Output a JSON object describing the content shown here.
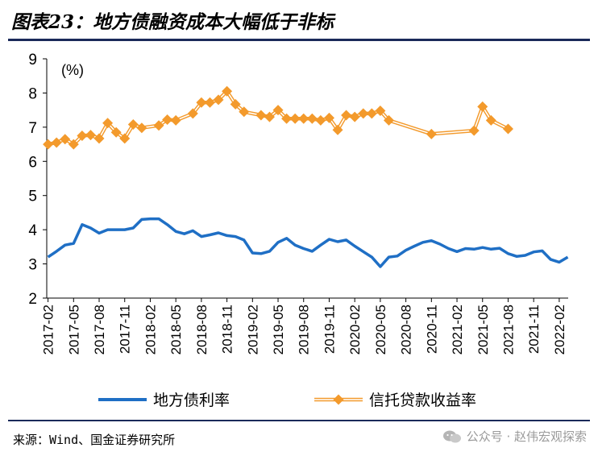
{
  "title": "图表23：地方债融资成本大幅低于非标",
  "source": "来源：Wind、国金证券研究所",
  "watermark": "公众号 · 赵伟宏观探索",
  "colors": {
    "blue": "#1f6fc5",
    "orange": "#f39a2c",
    "rule": "#1a2a5a"
  },
  "chart_data": {
    "type": "line",
    "unit_label": "(%)",
    "ylim": [
      2,
      9
    ],
    "yticks": [
      "2",
      "3",
      "4",
      "5",
      "6",
      "7",
      "8",
      "9"
    ],
    "x_start": "2017-02",
    "x_end": "2022-02",
    "xtick_labels": [
      "2017-02",
      "2017-05",
      "2017-08",
      "2017-11",
      "2018-02",
      "2018-05",
      "2018-08",
      "2018-11",
      "2019-02",
      "2019-05",
      "2019-08",
      "2019-11",
      "2020-02",
      "2020-05",
      "2020-08",
      "2020-11",
      "2021-02",
      "2021-05",
      "2021-08",
      "2021-11",
      "2022-02"
    ],
    "grid": false,
    "legend_position": "bottom",
    "series": [
      {
        "name": "地方债利率",
        "color": "#1f6fc5",
        "marker": "none",
        "points": [
          [
            "2017-02",
            3.2
          ],
          [
            "2017-03",
            3.37
          ],
          [
            "2017-04",
            3.55
          ],
          [
            "2017-05",
            3.6
          ],
          [
            "2017-06",
            4.15
          ],
          [
            "2017-07",
            4.05
          ],
          [
            "2017-08",
            3.9
          ],
          [
            "2017-09",
            4.0
          ],
          [
            "2017-10",
            4.0
          ],
          [
            "2017-11",
            4.0
          ],
          [
            "2017-12",
            4.05
          ],
          [
            "2018-01",
            4.3
          ],
          [
            "2018-02",
            4.32
          ],
          [
            "2018-03",
            4.32
          ],
          [
            "2018-04",
            4.15
          ],
          [
            "2018-05",
            3.95
          ],
          [
            "2018-06",
            3.88
          ],
          [
            "2018-07",
            3.97
          ],
          [
            "2018-08",
            3.8
          ],
          [
            "2018-09",
            3.85
          ],
          [
            "2018-10",
            3.91
          ],
          [
            "2018-11",
            3.83
          ],
          [
            "2018-12",
            3.8
          ],
          [
            "2019-01",
            3.7
          ],
          [
            "2019-02",
            3.32
          ],
          [
            "2019-03",
            3.3
          ],
          [
            "2019-04",
            3.37
          ],
          [
            "2019-05",
            3.63
          ],
          [
            "2019-06",
            3.75
          ],
          [
            "2019-07",
            3.55
          ],
          [
            "2019-08",
            3.45
          ],
          [
            "2019-09",
            3.37
          ],
          [
            "2019-10",
            3.55
          ],
          [
            "2019-11",
            3.72
          ],
          [
            "2019-12",
            3.65
          ],
          [
            "2020-01",
            3.7
          ],
          [
            "2020-02",
            3.52
          ],
          [
            "2020-03",
            3.36
          ],
          [
            "2020-04",
            3.2
          ],
          [
            "2020-05",
            2.92
          ],
          [
            "2020-06",
            3.2
          ],
          [
            "2020-07",
            3.23
          ],
          [
            "2020-08",
            3.4
          ],
          [
            "2020-09",
            3.52
          ],
          [
            "2020-10",
            3.63
          ],
          [
            "2020-11",
            3.68
          ],
          [
            "2020-12",
            3.58
          ],
          [
            "2021-01",
            3.45
          ],
          [
            "2021-02",
            3.36
          ],
          [
            "2021-03",
            3.45
          ],
          [
            "2021-04",
            3.43
          ],
          [
            "2021-05",
            3.48
          ],
          [
            "2021-06",
            3.43
          ],
          [
            "2021-07",
            3.46
          ],
          [
            "2021-08",
            3.3
          ],
          [
            "2021-09",
            3.22
          ],
          [
            "2021-10",
            3.25
          ],
          [
            "2021-11",
            3.35
          ],
          [
            "2021-12",
            3.38
          ],
          [
            "2022-01",
            3.13
          ],
          [
            "2022-02",
            3.05
          ],
          [
            "2022-03",
            3.2
          ]
        ]
      },
      {
        "name": "信托贷款收益率",
        "color": "#f39a2c",
        "marker": "diamond",
        "points": [
          [
            "2017-02",
            6.5
          ],
          [
            "2017-03",
            6.55
          ],
          [
            "2017-04",
            6.65
          ],
          [
            "2017-05",
            6.5
          ],
          [
            "2017-06",
            6.75
          ],
          [
            "2017-07",
            6.77
          ],
          [
            "2017-08",
            6.67
          ],
          [
            "2017-09",
            7.12
          ],
          [
            "2017-10",
            6.85
          ],
          [
            "2017-11",
            6.67
          ],
          [
            "2017-12",
            7.08
          ],
          [
            "2018-01",
            6.98
          ],
          [
            "2018-03",
            7.05
          ],
          [
            "2018-04",
            7.22
          ],
          [
            "2018-05",
            7.2
          ],
          [
            "2018-07",
            7.4
          ],
          [
            "2018-08",
            7.72
          ],
          [
            "2018-09",
            7.72
          ],
          [
            "2018-10",
            7.8
          ],
          [
            "2018-11",
            8.05
          ],
          [
            "2018-12",
            7.67
          ],
          [
            "2019-01",
            7.45
          ],
          [
            "2019-03",
            7.35
          ],
          [
            "2019-04",
            7.3
          ],
          [
            "2019-05",
            7.5
          ],
          [
            "2019-06",
            7.25
          ],
          [
            "2019-07",
            7.25
          ],
          [
            "2019-08",
            7.25
          ],
          [
            "2019-09",
            7.25
          ],
          [
            "2019-10",
            7.2
          ],
          [
            "2019-11",
            7.27
          ],
          [
            "2019-12",
            6.92
          ],
          [
            "2020-01",
            7.35
          ],
          [
            "2020-02",
            7.3
          ],
          [
            "2020-03",
            7.4
          ],
          [
            "2020-04",
            7.4
          ],
          [
            "2020-05",
            7.48
          ],
          [
            "2020-06",
            7.2
          ],
          [
            "2020-11",
            6.8
          ],
          [
            "2021-04",
            6.9
          ],
          [
            "2021-05",
            7.6
          ],
          [
            "2021-06",
            7.2
          ],
          [
            "2021-08",
            6.95
          ]
        ]
      }
    ]
  }
}
